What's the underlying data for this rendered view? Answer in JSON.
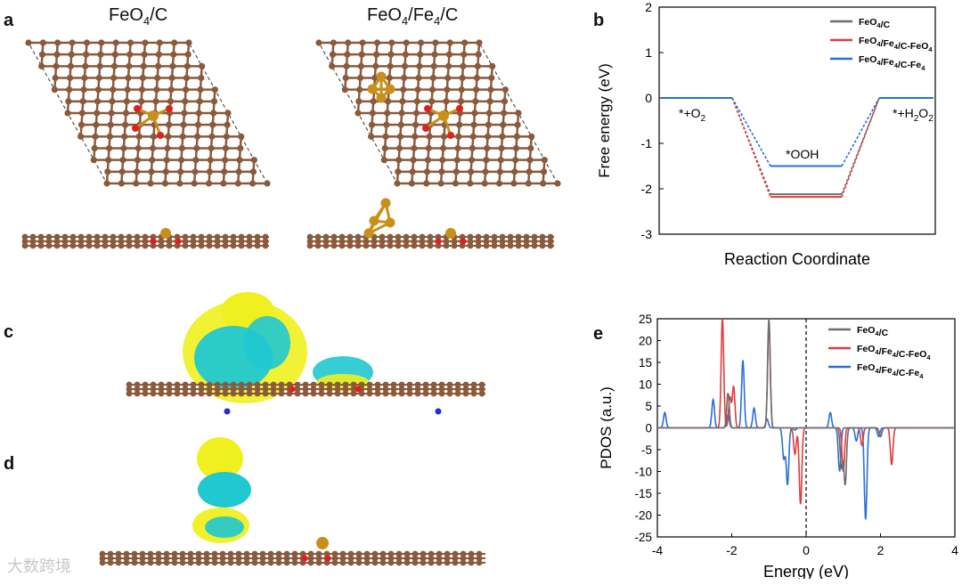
{
  "panels": {
    "a": {
      "letter": "a",
      "titles": [
        "FeO4/C",
        "FeO4/Fe4/C"
      ]
    },
    "b": {
      "letter": "b"
    },
    "c": {
      "letter": "c"
    },
    "d": {
      "letter": "d"
    },
    "e": {
      "letter": "e"
    }
  },
  "colors": {
    "carbon": "#8a5a3c",
    "oxygen": "#e02020",
    "iron": "#c8901a",
    "isosurface_yellow": "#f0f020",
    "isosurface_cyan": "#20c8d0",
    "nitrogen": "#2030d0",
    "series_FeO4C": "#6e6e6e",
    "series_FeO4": "#e03c3c",
    "series_Fe4": "#2a6fd8"
  },
  "watermark": "大数跨境",
  "chart_data": [
    {
      "type": "line",
      "panel": "b",
      "ylabel": "Free energy (eV)",
      "xlabel": "Reaction Coordinate",
      "ylim": [
        -3,
        2
      ],
      "yticks": [
        "2",
        "1",
        "0",
        "-1",
        "-2",
        "-3"
      ],
      "legend": [
        "FeO4/C",
        "FeO4/Fe4/C-FeO4",
        "FeO4/Fe4/C-Fe4"
      ],
      "legend_position": "top-right",
      "annotations": [
        "*+O2",
        "*OOH",
        "*+H2O2"
      ],
      "states": [
        "*+O2",
        "*OOH",
        "*+H2O2"
      ],
      "series": [
        {
          "name": "FeO4/C",
          "values": [
            0,
            -2.12,
            0
          ]
        },
        {
          "name": "FeO4/Fe4/C-FeO4",
          "values": [
            0,
            -2.18,
            0
          ]
        },
        {
          "name": "FeO4/Fe4/C-Fe4",
          "values": [
            0,
            -1.5,
            0
          ]
        }
      ]
    },
    {
      "type": "line",
      "panel": "e",
      "ylabel": "PDOS (a.u.)",
      "xlabel": "Energy (eV)",
      "xlim": [
        -4,
        4
      ],
      "ylim": [
        -25,
        25
      ],
      "xticks": [
        "-4",
        "-2",
        "0",
        "2",
        "4"
      ],
      "yticks": [
        "25",
        "20",
        "15",
        "10",
        "5",
        "0",
        "-5",
        "-10",
        "-15",
        "-20",
        "-25"
      ],
      "legend": [
        "FeO4/C",
        "FeO4/Fe4/C-FeO4",
        "FeO4/Fe4/C-Fe4"
      ],
      "legend_position": "top-right",
      "fermi_level": 0,
      "series": [
        {
          "name": "FeO4/C",
          "peaks": [
            [
              -1.0,
              25
            ],
            [
              -2.1,
              8
            ],
            [
              1.05,
              -13
            ],
            [
              0.95,
              -9
            ],
            [
              2.0,
              -2
            ],
            [
              -0.3,
              -0.5
            ]
          ]
        },
        {
          "name": "FeO4/Fe4/C-FeO4",
          "peaks": [
            [
              -2.25,
              25
            ],
            [
              -2.05,
              7
            ],
            [
              -1.95,
              9.5
            ],
            [
              -1.0,
              24
            ],
            [
              -0.15,
              -17.5
            ],
            [
              -0.3,
              -6
            ],
            [
              1.0,
              -10
            ],
            [
              1.5,
              -4
            ],
            [
              2.3,
              -8.5
            ],
            [
              2.0,
              -2
            ]
          ]
        },
        {
          "name": "FeO4/Fe4/C-Fe4",
          "peaks": [
            [
              -3.8,
              3.5
            ],
            [
              -2.5,
              6.5
            ],
            [
              -2.1,
              3
            ],
            [
              -1.7,
              15.5
            ],
            [
              -1.4,
              4.5
            ],
            [
              -1.05,
              2
            ],
            [
              -0.5,
              -13
            ],
            [
              -0.6,
              -7
            ],
            [
              0.65,
              3.5
            ],
            [
              0.9,
              -10
            ],
            [
              1.6,
              -21
            ],
            [
              1.35,
              -3
            ],
            [
              1.95,
              -2
            ]
          ]
        }
      ]
    }
  ]
}
